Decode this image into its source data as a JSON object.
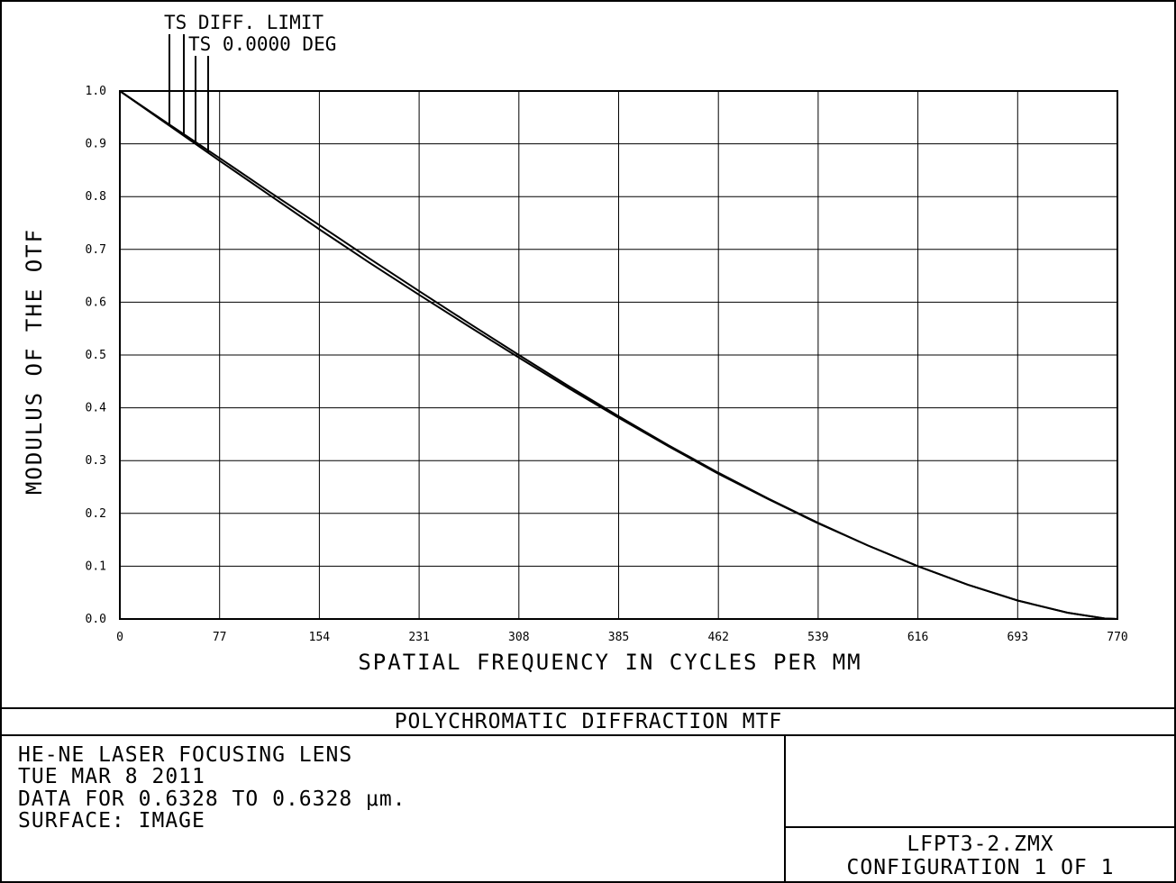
{
  "chart_data": {
    "type": "line",
    "title": "POLYCHROMATIC DIFFRACTION MTF",
    "xlabel": "SPATIAL FREQUENCY IN CYCLES PER MM",
    "ylabel": "MODULUS OF THE OTF",
    "xlim": [
      0,
      770
    ],
    "ylim": [
      0.0,
      1.0
    ],
    "x_ticks": [
      "0",
      "77",
      "154",
      "231",
      "308",
      "385",
      "462",
      "539",
      "616",
      "693",
      "770"
    ],
    "y_ticks": [
      "0.0",
      "0.1",
      "0.2",
      "0.3",
      "0.4",
      "0.5",
      "0.6",
      "0.7",
      "0.8",
      "0.9",
      "1.0"
    ],
    "grid": true,
    "legend_placement": "top-left",
    "x": [
      0,
      38.5,
      77,
      115.5,
      154,
      192.5,
      231,
      269.5,
      308,
      346.5,
      385,
      423.5,
      462,
      500.5,
      539,
      577.5,
      616,
      654.5,
      693,
      731.5,
      760,
      770
    ],
    "series": [
      {
        "name": "TS DIFF. LIMIT",
        "values": [
          1.0,
          0.936,
          0.873,
          0.809,
          0.746,
          0.683,
          0.621,
          0.56,
          0.5,
          0.441,
          0.384,
          0.329,
          0.277,
          0.228,
          0.182,
          0.139,
          0.1,
          0.065,
          0.035,
          0.012,
          0.001,
          0.0
        ]
      },
      {
        "name": "TS 0.0000 DEG",
        "values": [
          1.0,
          0.934,
          0.868,
          0.803,
          0.738,
          0.675,
          0.614,
          0.554,
          0.495,
          0.437,
          0.381,
          0.327,
          0.275,
          0.227,
          0.181,
          0.139,
          0.1,
          0.065,
          0.035,
          0.012,
          0.001,
          0.0
        ]
      }
    ]
  },
  "info": {
    "lens_name": "HE-NE LASER FOCUSING LENS",
    "date": "TUE MAR 8 2011",
    "data_range": "DATA FOR 0.6328 TO 0.6328 μm.",
    "surface": "SURFACE: IMAGE",
    "file_name": "LFPT3-2.ZMX",
    "configuration": "CONFIGURATION 1 OF 1"
  },
  "colors": {
    "line": "#000000",
    "grid": "#000000",
    "background": "#ffffff"
  }
}
